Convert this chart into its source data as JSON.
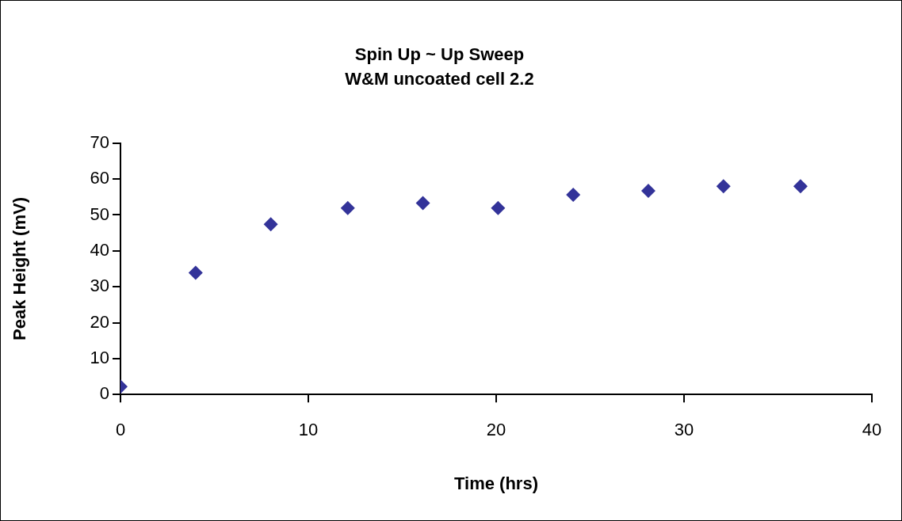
{
  "chart_data": {
    "type": "scatter",
    "title": "Spin Up ~ Up Sweep",
    "subtitle": "W&M uncoated cell 2.2",
    "xlabel": "Time (hrs)",
    "ylabel": "Peak Height (mV)",
    "x": [
      0,
      4,
      8,
      12.1,
      16.1,
      20.1,
      24.1,
      28.1,
      32.1,
      36.2
    ],
    "series": [
      {
        "color": "#333399",
        "values": [
          2.2,
          33.9,
          47.4,
          51.9,
          53.3,
          51.9,
          55.6,
          56.7,
          58.0,
          58.0
        ]
      }
    ],
    "xlim": [
      0,
      40
    ],
    "xticks": [
      0,
      10,
      20,
      30,
      40
    ],
    "ylim": [
      0,
      70
    ],
    "yticks": [
      0,
      10,
      20,
      30,
      40,
      50,
      60,
      70
    ],
    "grid": false,
    "legend": false,
    "marker": "diamond"
  }
}
